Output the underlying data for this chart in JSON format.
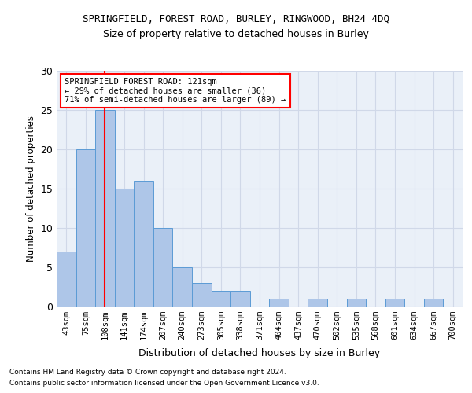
{
  "title1": "SPRINGFIELD, FOREST ROAD, BURLEY, RINGWOOD, BH24 4DQ",
  "title2": "Size of property relative to detached houses in Burley",
  "xlabel": "Distribution of detached houses by size in Burley",
  "ylabel": "Number of detached properties",
  "bin_labels": [
    "43sqm",
    "75sqm",
    "108sqm",
    "141sqm",
    "174sqm",
    "207sqm",
    "240sqm",
    "273sqm",
    "305sqm",
    "338sqm",
    "371sqm",
    "404sqm",
    "437sqm",
    "470sqm",
    "502sqm",
    "535sqm",
    "568sqm",
    "601sqm",
    "634sqm",
    "667sqm",
    "700sqm"
  ],
  "bar_heights": [
    7,
    20,
    25,
    15,
    16,
    10,
    5,
    3,
    2,
    2,
    0,
    1,
    0,
    1,
    0,
    1,
    0,
    1,
    0,
    1,
    0
  ],
  "bar_color": "#aec6e8",
  "bar_edgecolor": "#5b9bd5",
  "grid_color": "#d0d8e8",
  "background_color": "#eaf0f8",
  "vline_color": "red",
  "vline_x_index": 2,
  "annotation_line1": "SPRINGFIELD FOREST ROAD: 121sqm",
  "annotation_line2": "← 29% of detached houses are smaller (36)",
  "annotation_line3": "71% of semi-detached houses are larger (89) →",
  "annotation_box_edgecolor": "red",
  "ylim": [
    0,
    30
  ],
  "yticks": [
    0,
    5,
    10,
    15,
    20,
    25,
    30
  ],
  "footnote1": "Contains HM Land Registry data © Crown copyright and database right 2024.",
  "footnote2": "Contains public sector information licensed under the Open Government Licence v3.0."
}
